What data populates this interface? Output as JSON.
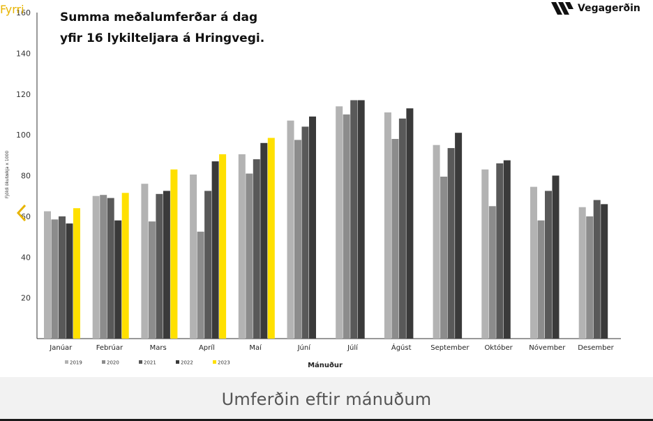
{
  "nav": {
    "prev_label": "Fyrri",
    "prev_icon": "chevron-left-icon"
  },
  "logo": {
    "text": "Vegagerðin",
    "icon": "vegagerdin-stripes-logo"
  },
  "caption": "Umferðin eftir mánuðum",
  "colors": {
    "2019": "#b3b3b3",
    "2020": "#8c8c8c",
    "2021": "#595959",
    "2022": "#3a3a3a",
    "2023": "#ffe000",
    "accent": "#e8b400"
  },
  "chart_data": {
    "type": "bar",
    "title_lines": [
      "Summa meðalumferðar á dag",
      "yfir 16 lykilteljara á Hringvegi."
    ],
    "xlabel": "Mánuður",
    "ylabel": "Fjöldi ökutækja x 1000",
    "ylim": [
      0,
      160
    ],
    "yticks": [
      20,
      40,
      60,
      80,
      100,
      120,
      140,
      160
    ],
    "grid": false,
    "legend_position": "bottom-left",
    "categories": [
      "Janúar",
      "Febrúar",
      "Mars",
      "Apríl",
      "Maí",
      "Júní",
      "Júlí",
      "Ágúst",
      "September",
      "Október",
      "Nóvember",
      "Desember"
    ],
    "series": [
      {
        "name": "2019",
        "values": [
          62.5,
          70,
          76,
          80.5,
          90.5,
          107,
          114,
          111,
          95,
          83,
          74.5,
          64.5
        ]
      },
      {
        "name": "2020",
        "values": [
          58.5,
          70.5,
          57.5,
          52.5,
          81,
          97.5,
          110,
          98,
          79.5,
          65,
          58,
          60
        ]
      },
      {
        "name": "2021",
        "values": [
          60,
          69,
          71,
          72.5,
          88,
          104,
          117,
          108,
          93.5,
          86,
          72.5,
          68
        ]
      },
      {
        "name": "2022",
        "values": [
          56.5,
          58,
          72.5,
          87,
          96,
          109,
          117,
          113,
          101,
          87.5,
          80,
          66
        ]
      },
      {
        "name": "2023",
        "values": [
          64,
          71.5,
          83,
          90.5,
          98.5,
          null,
          null,
          null,
          null,
          null,
          null,
          null
        ]
      }
    ]
  }
}
